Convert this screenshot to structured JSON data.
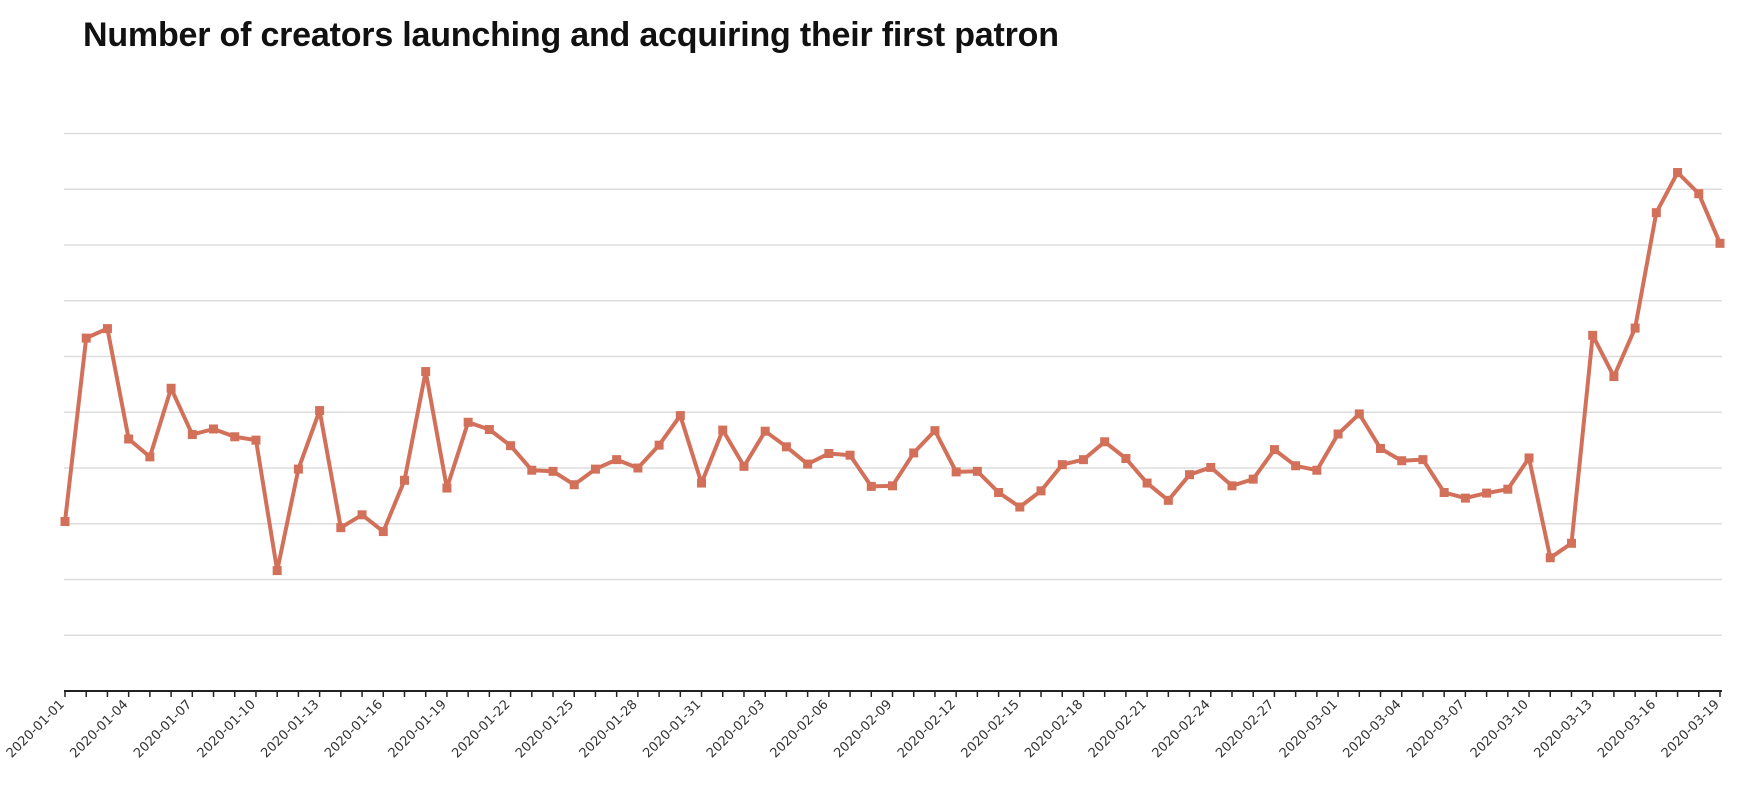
{
  "chart_data": {
    "type": "line",
    "title": "Number of creators launching and acquiring their first patron",
    "xlabel": "",
    "ylabel": "",
    "grid": true,
    "y_tick_labels_visible": false,
    "x_tick_labels": [
      "2020-01-01",
      "2020-01-04",
      "2020-01-07",
      "2020-01-10",
      "2020-01-13",
      "2020-01-16",
      "2020-01-19",
      "2020-01-22",
      "2020-01-25",
      "2020-01-28",
      "2020-01-31",
      "2020-02-03",
      "2020-02-06",
      "2020-02-09",
      "2020-02-12",
      "2020-02-15",
      "2020-02-18",
      "2020-02-21",
      "2020-02-24",
      "2020-02-27",
      "2020-03-01",
      "2020-03-04",
      "2020-03-07",
      "2020-03-10",
      "2020-03-13",
      "2020-03-16",
      "2020-03-19"
    ],
    "x_start": "2020-01-01",
    "x_end": "2020-03-19",
    "series": [
      {
        "name": "",
        "color": "#d2705a",
        "values": [
          30.4,
          63.3,
          65.0,
          45.2,
          42.0,
          54.3,
          46.0,
          47.0,
          45.6,
          45.0,
          21.6,
          39.8,
          50.3,
          29.3,
          31.6,
          28.6,
          37.8,
          57.3,
          36.4,
          48.2,
          46.9,
          44.0,
          39.6,
          39.4,
          37.0,
          39.8,
          41.5,
          40.0,
          44.1,
          49.4,
          37.3,
          46.8,
          40.3,
          46.6,
          43.8,
          40.7,
          42.6,
          42.3,
          36.7,
          36.8,
          42.7,
          46.7,
          39.3,
          39.4,
          35.6,
          33.0,
          35.9,
          40.6,
          41.5,
          44.7,
          41.7,
          37.3,
          34.2,
          38.8,
          40.1,
          36.8,
          38.0,
          43.3,
          40.4,
          39.6,
          46.1,
          49.7,
          43.5,
          41.3,
          41.5,
          35.6,
          34.6,
          35.5,
          36.2,
          41.8,
          23.9,
          26.5,
          63.8,
          56.4,
          65.1,
          85.8,
          93.0,
          89.2,
          80.3
        ]
      }
    ]
  }
}
